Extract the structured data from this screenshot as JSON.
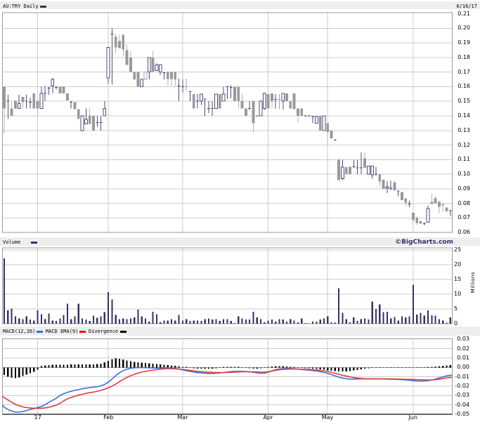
{
  "header": {
    "title": "AU:TRY Daily",
    "date": "6/16/17",
    "swatch_color": "#333366"
  },
  "volume_header": {
    "label": "Volume",
    "swatch_color": "#333366",
    "watermark": "©BigCharts.com"
  },
  "macd_header": {
    "items": [
      {
        "label": "MACD(12,26)",
        "swatch_color": "#2d6bf0"
      },
      {
        "label": "MACD EMA(9)",
        "swatch_color": "#ee1111"
      },
      {
        "label": "Divergence",
        "swatch_color": "#000000"
      }
    ]
  },
  "axes": {
    "price_ticks": [
      "0.21",
      "0.20",
      "0.19",
      "0.18",
      "0.17",
      "0.16",
      "0.15",
      "0.14",
      "0.13",
      "0.12",
      "0.11",
      "0.10",
      "0.09",
      "0.08",
      "0.07",
      "0.06"
    ],
    "volume_ticks": [
      "25",
      "20",
      "15",
      "10",
      "5",
      "0"
    ],
    "volume_unit": "Millions",
    "macd_ticks": [
      "0.03",
      "0.02",
      "0.01",
      "0.00",
      "-0.01",
      "-0.02",
      "-0.03",
      "-0.04",
      "-0.05"
    ],
    "months": [
      {
        "label": "17",
        "bar": 9
      },
      {
        "label": "Feb",
        "bar": 28
      },
      {
        "label": "Mar",
        "bar": 48
      },
      {
        "label": "Apr",
        "bar": 71
      },
      {
        "label": "May",
        "bar": 87
      },
      {
        "label": "Jun",
        "bar": 110
      }
    ]
  },
  "colors": {
    "background": "#ffffff",
    "strip_bg": "#eeeeee",
    "grid": "#cccccc",
    "border": "#999999",
    "axis_text": "#000000",
    "candle_up": "#4d4d7f",
    "candle_up_light": "#9d9dc0",
    "candle_down": "#999999",
    "candle_down_wick": "#b3b3b3",
    "volume_bar": "#333366",
    "macd_line": "#3a6fe0",
    "signal_line": "#e03c3c",
    "divergence_bar": "#000000",
    "bottom_axis": "#666666"
  },
  "chart_data": [
    {
      "type": "candlestick",
      "title": "AU:TRY Daily",
      "ylabel": "price",
      "ylim": [
        0.06,
        0.21
      ],
      "n_bars": 121,
      "open": [
        0.16,
        0.15,
        0.145,
        0.15,
        0.145,
        0.153,
        0.15,
        0.1495,
        0.1555,
        0.15,
        0.145,
        0.1555,
        0.159,
        0.1605,
        0.1595,
        0.16,
        0.16,
        0.1555,
        0.1495,
        0.1495,
        0.1445,
        0.13,
        0.1345,
        0.14,
        0.14,
        0.1355,
        0.1355,
        0.14,
        0.166,
        0.196,
        0.1945,
        0.1913,
        0.1955,
        0.185,
        0.18,
        0.17,
        0.17,
        0.16,
        0.165,
        0.17,
        0.18,
        0.171,
        0.17,
        0.1695,
        0.17,
        0.17,
        0.17,
        0.1605,
        0.16,
        0.16,
        0.1565,
        0.155,
        0.15,
        0.15,
        0.1515,
        0.145,
        0.145,
        0.145,
        0.155,
        0.15,
        0.16,
        0.1595,
        0.16,
        0.16,
        0.15,
        0.145,
        0.145,
        0.15,
        0.14,
        0.14,
        0.145,
        0.155,
        0.1553,
        0.1513,
        0.1513,
        0.15,
        0.1555,
        0.15,
        0.1555,
        0.145,
        0.145,
        0.14,
        0.14,
        0.1395,
        0.135,
        0.14,
        0.13,
        0.135,
        0.13,
        0.1235,
        0.11,
        0.097,
        0.1048,
        0.105,
        0.105,
        0.1045,
        0.1045,
        0.111,
        0.1,
        0.0995,
        0.1,
        0.1,
        0.0961,
        0.0905,
        0.0905,
        0.0943,
        0.0885,
        0.0877,
        0.0834,
        0.0795,
        0.0735,
        0.0701,
        0.0677,
        0.066,
        0.067,
        0.081,
        0.0838,
        0.081,
        0.0796,
        0.0773,
        0.075
      ],
      "high": [
        0.16,
        0.1545,
        0.15,
        0.151,
        0.1545,
        0.153,
        0.1545,
        0.1525,
        0.1555,
        0.153,
        0.16,
        0.1605,
        0.16,
        0.166,
        0.16,
        0.16,
        0.16,
        0.1555,
        0.15,
        0.1495,
        0.1445,
        0.1405,
        0.145,
        0.145,
        0.14,
        0.14,
        0.14,
        0.15,
        0.187,
        0.2,
        0.196,
        0.1955,
        0.1955,
        0.189,
        0.184,
        0.17,
        0.17,
        0.165,
        0.17,
        0.18,
        0.1845,
        0.176,
        0.1755,
        0.1695,
        0.17,
        0.17,
        0.17,
        0.1655,
        0.165,
        0.1655,
        0.1565,
        0.155,
        0.155,
        0.155,
        0.1515,
        0.15,
        0.15,
        0.155,
        0.155,
        0.16,
        0.1605,
        0.161,
        0.16,
        0.16,
        0.155,
        0.145,
        0.15,
        0.15,
        0.14,
        0.1505,
        0.156,
        0.155,
        0.1553,
        0.155,
        0.155,
        0.1555,
        0.1555,
        0.15,
        0.1555,
        0.145,
        0.145,
        0.1405,
        0.1405,
        0.14,
        0.1395,
        0.14,
        0.14,
        0.135,
        0.13,
        0.124,
        0.111,
        0.11,
        0.1048,
        0.105,
        0.11,
        0.11,
        0.115,
        0.115,
        0.1055,
        0.1055,
        0.105,
        0.1,
        0.0965,
        0.0953,
        0.0955,
        0.0955,
        0.0885,
        0.0877,
        0.0834,
        0.082,
        0.0735,
        0.0715,
        0.0677,
        0.067,
        0.0785,
        0.0865,
        0.085,
        0.082,
        0.0796,
        0.0773,
        0.0754
      ],
      "low": [
        0.128,
        0.138,
        0.14,
        0.1445,
        0.145,
        0.145,
        0.145,
        0.145,
        0.145,
        0.1405,
        0.145,
        0.15,
        0.1545,
        0.1555,
        0.158,
        0.1555,
        0.1555,
        0.1505,
        0.145,
        0.1445,
        0.1375,
        0.1295,
        0.1345,
        0.1345,
        0.13,
        0.1325,
        0.13,
        0.14,
        0.162,
        0.1615,
        0.183,
        0.1863,
        0.181,
        0.175,
        0.17,
        0.1645,
        0.16,
        0.16,
        0.165,
        0.165,
        0.17,
        0.171,
        0.168,
        0.165,
        0.1605,
        0.1605,
        0.1605,
        0.15,
        0.156,
        0.157,
        0.15,
        0.145,
        0.145,
        0.1475,
        0.14,
        0.142,
        0.14,
        0.145,
        0.145,
        0.15,
        0.1515,
        0.152,
        0.15,
        0.145,
        0.145,
        0.14,
        0.144,
        0.129,
        0.1395,
        0.14,
        0.144,
        0.145,
        0.145,
        0.145,
        0.1445,
        0.1443,
        0.15,
        0.145,
        0.1447,
        0.1355,
        0.14,
        0.1395,
        0.1395,
        0.135,
        0.135,
        0.13,
        0.13,
        0.121,
        0.1245,
        0.123,
        0.096,
        0.096,
        0.1,
        0.1,
        0.1045,
        0.1,
        0.1,
        0.1045,
        0.0995,
        0.097,
        0.099,
        0.0917,
        0.09,
        0.087,
        0.089,
        0.089,
        0.085,
        0.0823,
        0.078,
        0.0774,
        0.065,
        0.0652,
        0.066,
        0.065,
        0.067,
        0.0793,
        0.08,
        0.0733,
        0.074,
        0.0735,
        0.0715
      ],
      "close": [
        0.145,
        0.15,
        0.14,
        0.145,
        0.1485,
        0.1495,
        0.15,
        0.1495,
        0.145,
        0.145,
        0.1555,
        0.1555,
        0.159,
        0.165,
        0.1595,
        0.1555,
        0.1555,
        0.1505,
        0.1495,
        0.1445,
        0.138,
        0.14,
        0.1375,
        0.1345,
        0.13,
        0.1355,
        0.1355,
        0.145,
        0.187,
        0.196,
        0.187,
        0.1865,
        0.1855,
        0.175,
        0.17,
        0.165,
        0.16,
        0.165,
        0.17,
        0.18,
        0.17,
        0.175,
        0.1752,
        0.1695,
        0.1653,
        0.1653,
        0.165,
        0.1605,
        0.16,
        0.16,
        0.1565,
        0.145,
        0.15,
        0.155,
        0.1515,
        0.145,
        0.145,
        0.155,
        0.145,
        0.155,
        0.16,
        0.1595,
        0.15,
        0.15,
        0.145,
        0.14,
        0.145,
        0.135,
        0.14,
        0.15,
        0.1555,
        0.145,
        0.15,
        0.1513,
        0.1513,
        0.1555,
        0.15,
        0.145,
        0.1447,
        0.14,
        0.14,
        0.14,
        0.14,
        0.1395,
        0.1395,
        0.13,
        0.14,
        0.129,
        0.1245,
        0.1235,
        0.096,
        0.1048,
        0.1,
        0.1,
        0.105,
        0.1045,
        0.1045,
        0.1045,
        0.1055,
        0.1055,
        0.1,
        0.095,
        0.09,
        0.0915,
        0.0905,
        0.089,
        0.0885,
        0.0823,
        0.0805,
        0.0795,
        0.0685,
        0.0667,
        0.066,
        0.066,
        0.0765,
        0.0795,
        0.08,
        0.0776,
        0.0786,
        0.0749,
        0.075
      ],
      "light_bars": [
        38,
        49,
        74
      ]
    },
    {
      "type": "bar",
      "title": "Volume",
      "ylabel": "Millions",
      "ylim": [
        0,
        25
      ],
      "values": [
        22.1,
        4.5,
        5.1,
        2.5,
        1.8,
        1.6,
        2.5,
        1.4,
        1.1,
        4.5,
        3.2,
        1.6,
        3.4,
        1.1,
        0.9,
        1.8,
        3.0,
        6.8,
        1.6,
        2.5,
        6.8,
        1.8,
        1.4,
        0.9,
        2.7,
        2.0,
        2.5,
        3.9,
        10.7,
        8.2,
        3.0,
        1.6,
        1.8,
        1.6,
        1.8,
        2.1,
        4.8,
        2.5,
        1.8,
        0.7,
        4.1,
        3.2,
        0.5,
        1.1,
        1.1,
        1.6,
        1.1,
        3.0,
        1.1,
        1.6,
        0.9,
        1.1,
        1.1,
        0.9,
        1.6,
        1.8,
        1.4,
        1.6,
        0.9,
        1.6,
        1.6,
        0.9,
        0.2,
        2.5,
        1.8,
        1.4,
        1.4,
        4.1,
        2.1,
        1.6,
        0.5,
        1.1,
        1.4,
        0.7,
        1.6,
        1.4,
        0.7,
        1.6,
        1.1,
        0.5,
        1.8,
        0.2,
        0.1,
        0.7,
        0.7,
        1.4,
        1.8,
        2.5,
        0.5,
        0.3,
        12.0,
        3.7,
        1.5,
        0.5,
        2.1,
        0.9,
        1.6,
        1.8,
        1.4,
        7.5,
        5.0,
        6.5,
        3.9,
        4.1,
        1.8,
        2.3,
        1.1,
        2.5,
        2.2,
        2.5,
        13.2,
        3.1,
        3.7,
        2.7,
        4.5,
        2.9,
        2.7,
        1.5,
        1.1,
        0.4,
        2.2
      ]
    },
    {
      "type": "line",
      "title": "MACD(12,26)",
      "ylim": [
        -0.05,
        0.03
      ],
      "series": [
        {
          "name": "MACD(12,26)",
          "values": [
            -0.0425,
            -0.0449,
            -0.04664,
            -0.04773,
            -0.04776,
            -0.04711,
            -0.04605,
            -0.04501,
            -0.04403,
            -0.04289,
            -0.04176,
            -0.03971,
            -0.03724,
            -0.03509,
            -0.03296,
            -0.02988,
            -0.02811,
            -0.0266,
            -0.02543,
            -0.02445,
            -0.02383,
            -0.02269,
            -0.02215,
            -0.02144,
            -0.021,
            -0.02056,
            -0.01968,
            -0.01815,
            -0.01573,
            -0.01244,
            -0.00868,
            -0.00561,
            -0.00342,
            -0.00183,
            -0.00082,
            -0.00035,
            -0.0002,
            -0.0002,
            -0.00024,
            -0.00039,
            -0.00055,
            -0.00066,
            -0.00064,
            -0.00046,
            -0.0004,
            -0.00072,
            -0.00123,
            -0.00169,
            -0.00258,
            -0.00347,
            -0.0042,
            -0.00493,
            -0.00551,
            -0.00582,
            -0.00619,
            -0.00646,
            -0.00643,
            -0.00619,
            -0.00587,
            -0.00539,
            -0.00486,
            -0.00448,
            -0.0042,
            -0.0041,
            -0.00417,
            -0.00433,
            -0.00465,
            -0.00521,
            -0.00577,
            -0.00612,
            -0.00605,
            -0.0051,
            -0.00356,
            -0.00237,
            -0.00165,
            -0.00129,
            -0.00114,
            -0.00116,
            -0.00136,
            -0.00173,
            -0.00211,
            -0.0025,
            -0.00287,
            -0.00326,
            -0.00378,
            -0.00447,
            -0.00529,
            -0.00625,
            -0.00751,
            -0.00895,
            -0.01035,
            -0.01143,
            -0.01202,
            -0.01238,
            -0.01245,
            -0.01231,
            -0.0122,
            -0.0122,
            -0.0122,
            -0.0122,
            -0.01222,
            -0.01227,
            -0.01233,
            -0.01244,
            -0.01254,
            -0.01266,
            -0.01287,
            -0.01307,
            -0.01331,
            -0.01373,
            -0.01413,
            -0.01445,
            -0.01457,
            -0.01441,
            -0.01412,
            -0.01353,
            -0.01239,
            -0.01113,
            -0.01011,
            -0.009,
            -0.00835
          ]
        },
        {
          "name": "MACD EMA(9)",
          "values": [
            -0.03216,
            -0.03474,
            -0.03721,
            -0.03936,
            -0.04095,
            -0.04209,
            -0.04287,
            -0.04335,
            -0.04361,
            -0.04376,
            -0.04367,
            -0.04328,
            -0.04255,
            -0.04155,
            -0.04031,
            -0.03833,
            -0.03572,
            -0.03354,
            -0.03208,
            -0.03075,
            -0.02956,
            -0.02863,
            -0.02775,
            -0.02693,
            -0.02634,
            -0.02545,
            -0.02448,
            -0.02324,
            -0.02176,
            -0.01997,
            -0.01779,
            -0.0152,
            -0.01276,
            -0.01064,
            -0.00885,
            -0.0073,
            -0.00598,
            -0.00492,
            -0.00412,
            -0.00342,
            -0.00284,
            -0.00231,
            -0.00185,
            -0.00149,
            -0.00125,
            -0.00128,
            -0.00147,
            -0.00173,
            -0.00211,
            -0.00262,
            -0.00308,
            -0.00365,
            -0.00421,
            -0.00452,
            -0.00482,
            -0.00506,
            -0.00524,
            -0.00537,
            -0.00548,
            -0.00543,
            -0.00526,
            -0.00513,
            -0.00497,
            -0.00477,
            -0.00463,
            -0.0046,
            -0.0046,
            -0.00467,
            -0.00482,
            -0.00502,
            -0.00503,
            -0.00458,
            -0.00384,
            -0.00306,
            -0.00245,
            -0.00203,
            -0.00178,
            -0.0017,
            -0.0017,
            -0.00176,
            -0.00185,
            -0.002,
            -0.00221,
            -0.00245,
            -0.00274,
            -0.00311,
            -0.00364,
            -0.00431,
            -0.0052,
            -0.00622,
            -0.00726,
            -0.00833,
            -0.0092,
            -0.01002,
            -0.01077,
            -0.01131,
            -0.01175,
            -0.01209,
            -0.0122,
            -0.0122,
            -0.0122,
            -0.0122,
            -0.0122,
            -0.0122,
            -0.01224,
            -0.01233,
            -0.01243,
            -0.01253,
            -0.01263,
            -0.01273,
            -0.01286,
            -0.01302,
            -0.01313,
            -0.01326,
            -0.0134,
            -0.01335,
            -0.01306,
            -0.01259,
            -0.01193,
            -0.01122,
            -0.01065
          ]
        },
        {
          "name": "Divergence",
          "values": [
            -0.008,
            -0.01,
            -0.011,
            -0.0112,
            -0.0105,
            -0.009,
            -0.0075,
            -0.006,
            -0.0045,
            -0.0025,
            0.0018,
            0.0022,
            0.0026,
            0.003,
            0.003,
            0.003,
            0.003,
            0.003,
            0.0031,
            0.0032,
            0.0032,
            0.0032,
            0.0032,
            0.0032,
            0.0033,
            0.0035,
            0.004,
            0.0055,
            0.007,
            0.009,
            0.0097,
            0.0094,
            0.0085,
            0.0075,
            0.0066,
            0.006,
            0.0054,
            0.005,
            0.0046,
            0.0043,
            0.004,
            0.0037,
            0.0034,
            0.003,
            0.0026,
            0.0022,
            0.0018,
            0.0012,
            0.0006,
            0.0,
            -0.0005,
            -0.001,
            -0.0012,
            -0.0013,
            -0.0013,
            -0.0012,
            -0.0011,
            -0.0008,
            -0.0004,
            0.0,
            0.0004,
            0.0006,
            0.0005,
            0.0002,
            -0.0002,
            -0.0005,
            -0.0008,
            -0.0011,
            -0.0012,
            -0.0008,
            -0.0002,
            0.0005,
            0.001,
            0.0013,
            0.0014,
            0.0013,
            0.001,
            0.0006,
            0.0002,
            -0.0002,
            -0.0005,
            -0.0008,
            -0.001,
            -0.0013,
            -0.0016,
            -0.002,
            -0.0025,
            -0.003,
            -0.0036,
            -0.004,
            -0.0043,
            -0.0043,
            -0.0042,
            -0.0038,
            -0.0032,
            -0.0026,
            -0.002,
            -0.0014,
            -0.0008,
            -0.0004,
            -0.0002,
            -0.0003,
            -0.0004,
            -0.0005,
            -0.0005,
            -0.0004,
            -0.0004,
            -0.0003,
            -0.0003,
            -0.0004,
            -0.0005,
            -0.0006,
            -0.0005,
            -0.0003,
            0.0002,
            0.0005,
            0.001,
            0.0015,
            0.0018,
            0.0022,
            0.0024
          ]
        }
      ],
      "edge_start": {
        "macd": -0.04,
        "signal": -0.031
      }
    }
  ]
}
